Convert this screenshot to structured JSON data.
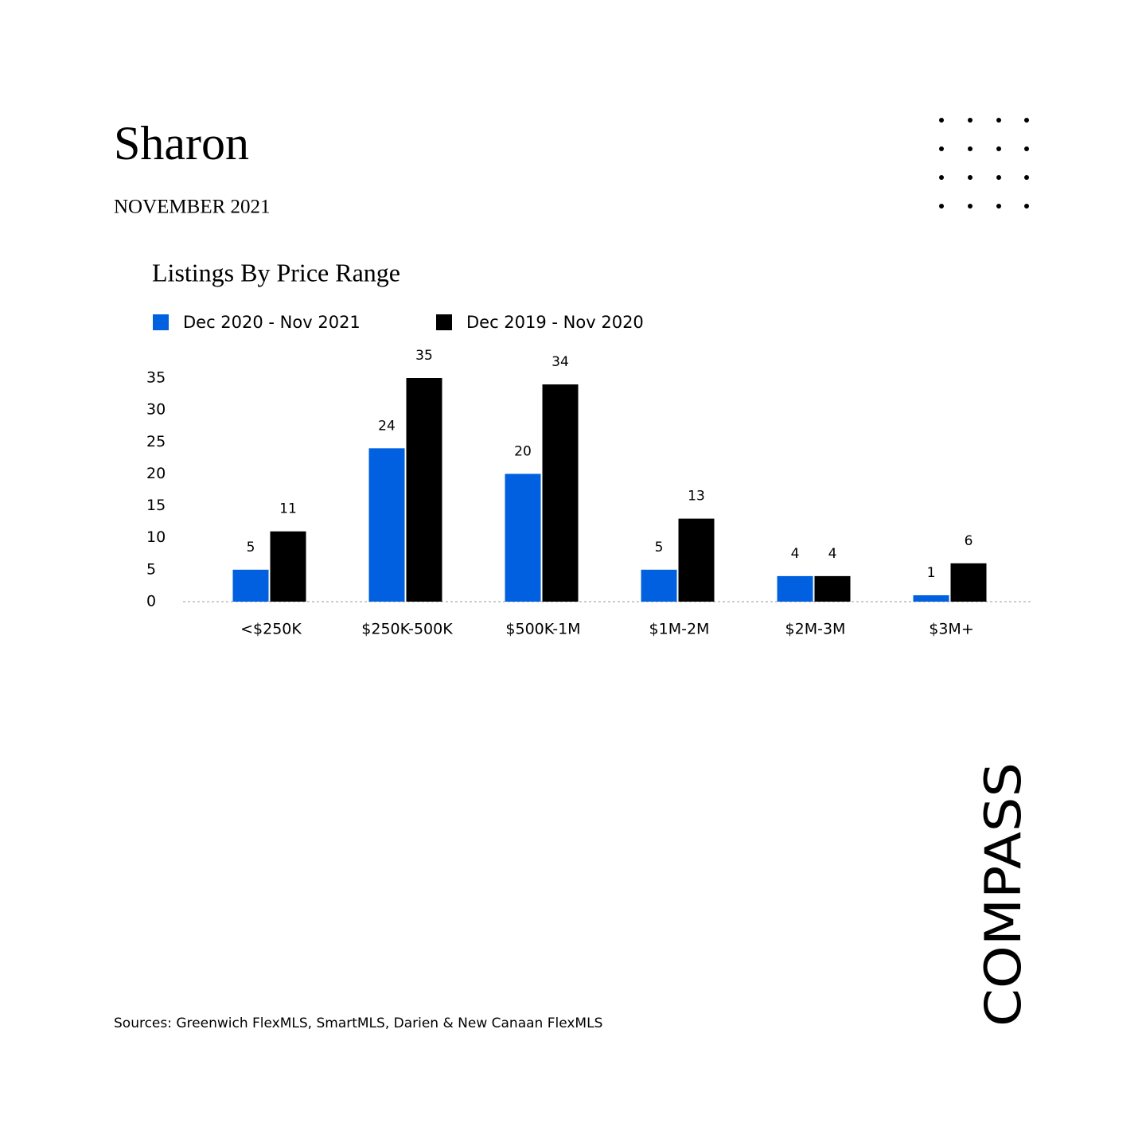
{
  "header": {
    "title": "Sharon",
    "subtitle": "NOVEMBER 2021"
  },
  "chart_data": {
    "type": "bar",
    "title": "Listings By Price Range",
    "categories": [
      "<$250K",
      "$250K-500K",
      "$500K-1M",
      "$1M-2M",
      "$2M-3M",
      "$3M+"
    ],
    "series": [
      {
        "name": "Dec 2020 - Nov 2021",
        "color": "#0060df",
        "values": [
          5,
          24,
          20,
          5,
          4,
          1
        ]
      },
      {
        "name": "Dec 2019 - Nov 2020",
        "color": "#000000",
        "values": [
          11,
          35,
          34,
          13,
          4,
          6
        ]
      }
    ],
    "ylim": [
      0,
      35
    ],
    "yticks": [
      0,
      5,
      10,
      15,
      20,
      25,
      30,
      35
    ],
    "grid": false,
    "legend": "top-left"
  },
  "footer": {
    "sources": "Sources: Greenwich FlexMLS, SmartMLS, Darien & New Canaan FlexMLS"
  },
  "logo": "COMPASS"
}
